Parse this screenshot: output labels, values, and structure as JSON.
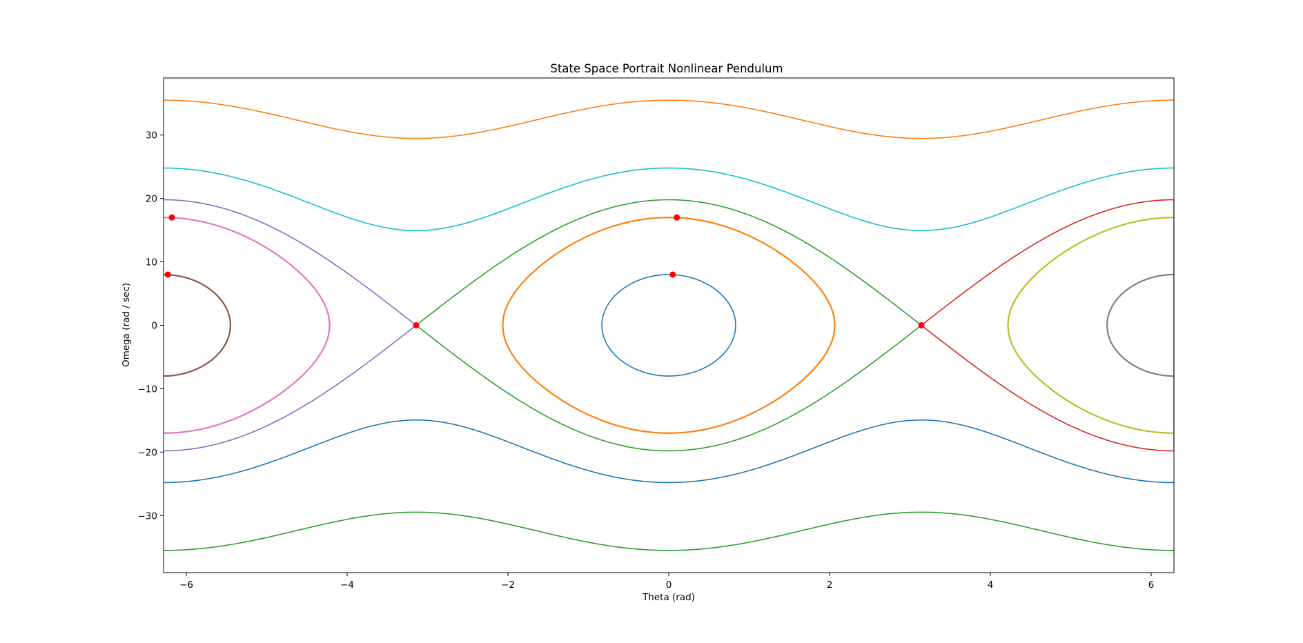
{
  "chart_data": {
    "type": "line",
    "title": "State Space Portrait Nonlinear Pendulum",
    "xlabel": "Theta (rad)",
    "ylabel": "Omega (rad / sec)",
    "xlim": [
      -6.2832,
      6.2832
    ],
    "ylim": [
      -39,
      39
    ],
    "xticks": [
      -6,
      -4,
      -2,
      0,
      2,
      4,
      6
    ],
    "yticks": [
      -30,
      -20,
      -10,
      0,
      10,
      20,
      30
    ],
    "xtick_labels": [
      "−6",
      "−4",
      "−2",
      "0",
      "2",
      "4",
      "6"
    ],
    "ytick_labels": [
      "−30",
      "−20",
      "−10",
      "0",
      "10",
      "20",
      "30"
    ],
    "grid": false,
    "legend": "none",
    "gravity_ratio_g_over_l": 98.0,
    "series": [
      {
        "kind": "libration",
        "center": 0,
        "omega_max": 8.0,
        "color": "#1f77b4"
      },
      {
        "kind": "libration",
        "center": 0,
        "omega_max": 17.0,
        "color": "#ff7f0e",
        "width": 2.2
      },
      {
        "kind": "separatrix",
        "theta_from": -3.1416,
        "theta_to": 3.1416,
        "color": "#2ca02c"
      },
      {
        "kind": "separatrix",
        "theta_from": 3.1416,
        "theta_to": 6.2832,
        "color": "#d62728"
      },
      {
        "kind": "separatrix",
        "theta_from": -6.2832,
        "theta_to": -3.1416,
        "color": "#9467bd"
      },
      {
        "kind": "libration",
        "center": -6.2832,
        "omega_max": 8.0,
        "color": "#8c564b",
        "width": 2.2
      },
      {
        "kind": "libration",
        "center": -6.2832,
        "omega_max": 17.0,
        "color": "#e377c2",
        "width": 2.2
      },
      {
        "kind": "libration",
        "center": 6.2832,
        "omega_max": 8.0,
        "color": "#7f7f7f",
        "width": 2.2
      },
      {
        "kind": "libration",
        "center": 6.2832,
        "omega_max": 17.0,
        "color": "#bcbd22",
        "width": 2.2
      },
      {
        "kind": "rotation",
        "omega_at_zero": 24.8,
        "color": "#17becf"
      },
      {
        "kind": "rotation",
        "omega_at_zero": -24.8,
        "color": "#1f77b4"
      },
      {
        "kind": "rotation",
        "omega_at_zero": 35.5,
        "color": "#ff7f0e"
      },
      {
        "kind": "rotation",
        "omega_at_zero": -35.5,
        "color": "#2ca02c"
      }
    ],
    "points": [
      {
        "x": 0.05,
        "y": 8.0
      },
      {
        "x": 0.1,
        "y": 17.0
      },
      {
        "x": -3.1416,
        "y": 0
      },
      {
        "x": 3.1416,
        "y": 0
      },
      {
        "x": -6.23,
        "y": 8.0
      },
      {
        "x": -6.18,
        "y": 17.0
      }
    ],
    "point_color": "#ff0000"
  }
}
